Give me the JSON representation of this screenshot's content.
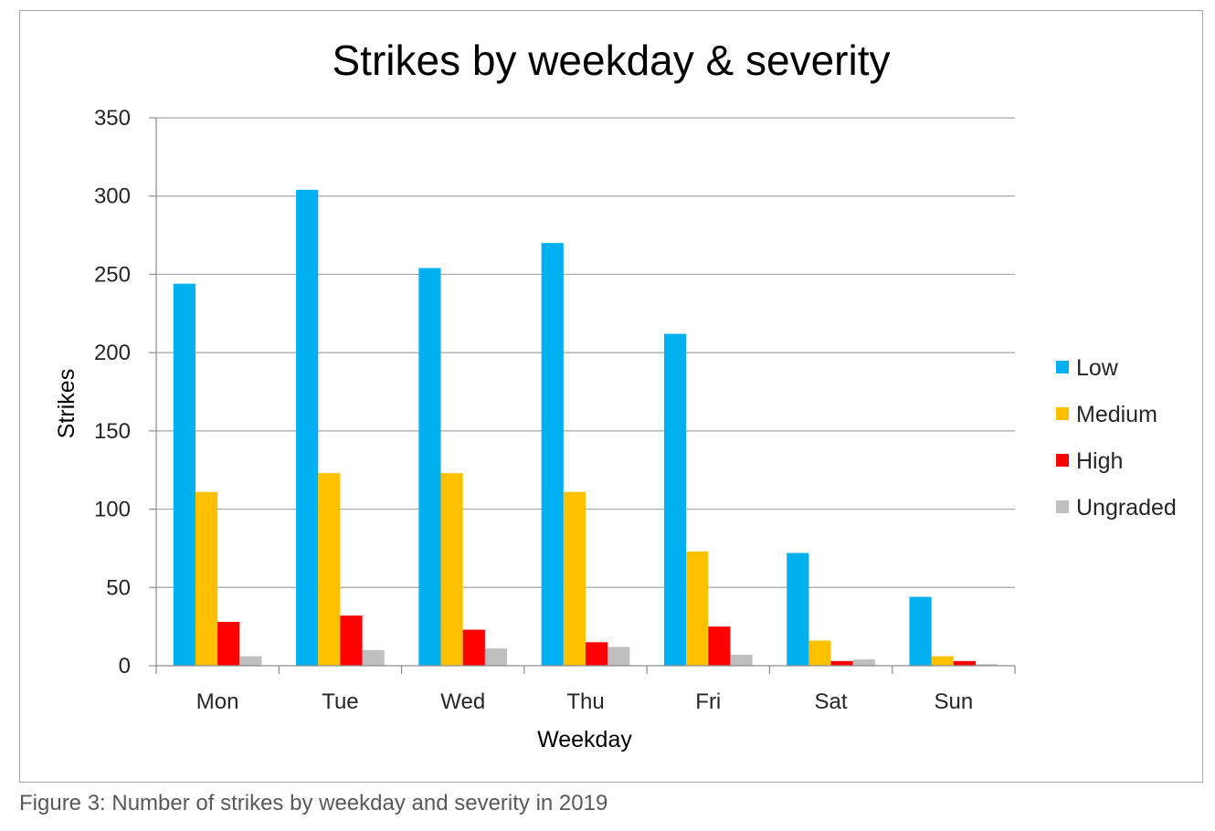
{
  "chart_data": {
    "type": "bar",
    "title": "Strikes by weekday & severity",
    "xlabel": "Weekday",
    "ylabel": "Strikes",
    "ylim": [
      0,
      350
    ],
    "yticks": [
      0,
      50,
      100,
      150,
      200,
      250,
      300,
      350
    ],
    "grid": true,
    "legend_position": "right",
    "categories": [
      "Mon",
      "Tue",
      "Wed",
      "Thu",
      "Fri",
      "Sat",
      "Sun"
    ],
    "series": [
      {
        "name": "Low",
        "color": "#00b0f0",
        "values": [
          244,
          304,
          254,
          270,
          212,
          72,
          44
        ]
      },
      {
        "name": "Medium",
        "color": "#ffc000",
        "values": [
          111,
          123,
          123,
          111,
          73,
          16,
          6
        ]
      },
      {
        "name": "High",
        "color": "#ff0000",
        "values": [
          28,
          32,
          23,
          15,
          25,
          3,
          3
        ]
      },
      {
        "name": "Ungraded",
        "color": "#bfbfbf",
        "values": [
          6,
          10,
          11,
          12,
          7,
          4,
          1
        ]
      }
    ]
  },
  "caption": "Figure 3: Number of strikes by weekday and severity in 2019"
}
